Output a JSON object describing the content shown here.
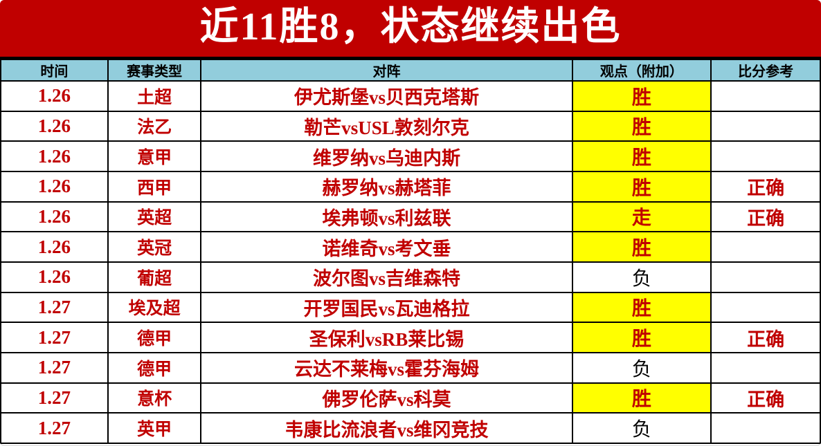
{
  "banner": {
    "title": "近11胜8，状态继续出色"
  },
  "colors": {
    "banner_red": "#c00000",
    "header_blue": "#92cddc",
    "highlight_yellow": "#ffff00",
    "text_red": "#c00000",
    "text_black": "#000000"
  },
  "chart_data": {
    "type": "table",
    "title": "近11胜8，状态继续出色",
    "columns": [
      "时间",
      "赛事类型",
      "对阵",
      "观点（附加）",
      "比分参考"
    ],
    "rows": [
      {
        "date": "1.26",
        "league": "土超",
        "match": "伊尤斯堡vs贝西克塔斯",
        "view": "胜",
        "view_highlighted": true,
        "result": ""
      },
      {
        "date": "1.26",
        "league": "法乙",
        "match": "勒芒vsUSL敦刻尔克",
        "view": "胜",
        "view_highlighted": true,
        "result": ""
      },
      {
        "date": "1.26",
        "league": "意甲",
        "match": "维罗纳vs乌迪内斯",
        "view": "胜",
        "view_highlighted": true,
        "result": ""
      },
      {
        "date": "1.26",
        "league": "西甲",
        "match": "赫罗纳vs赫塔菲",
        "view": "胜",
        "view_highlighted": true,
        "result": "正确"
      },
      {
        "date": "1.26",
        "league": "英超",
        "match": "埃弗顿vs利兹联",
        "view": "走",
        "view_highlighted": true,
        "result": "正确"
      },
      {
        "date": "1.26",
        "league": "英冠",
        "match": "诺维奇vs考文垂",
        "view": "胜",
        "view_highlighted": true,
        "result": ""
      },
      {
        "date": "1.26",
        "league": "葡超",
        "match": "波尔图vs吉维森特",
        "view": "负",
        "view_highlighted": false,
        "result": ""
      },
      {
        "date": "1.27",
        "league": "埃及超",
        "match": "开罗国民vs瓦迪格拉",
        "view": "胜",
        "view_highlighted": true,
        "result": ""
      },
      {
        "date": "1.27",
        "league": "德甲",
        "match": "圣保利vsRB莱比锡",
        "view": "胜",
        "view_highlighted": true,
        "result": "正确"
      },
      {
        "date": "1.27",
        "league": "德甲",
        "match": "云达不莱梅vs霍芬海姆",
        "view": "负",
        "view_highlighted": false,
        "result": ""
      },
      {
        "date": "1.27",
        "league": "意杯",
        "match": "佛罗伦萨vs科莫",
        "view": "胜",
        "view_highlighted": true,
        "result": "正确"
      },
      {
        "date": "1.27",
        "league": "英甲",
        "match": "韦康比流浪者vs维冈竞技",
        "view": "负",
        "view_highlighted": false,
        "result": ""
      }
    ]
  }
}
